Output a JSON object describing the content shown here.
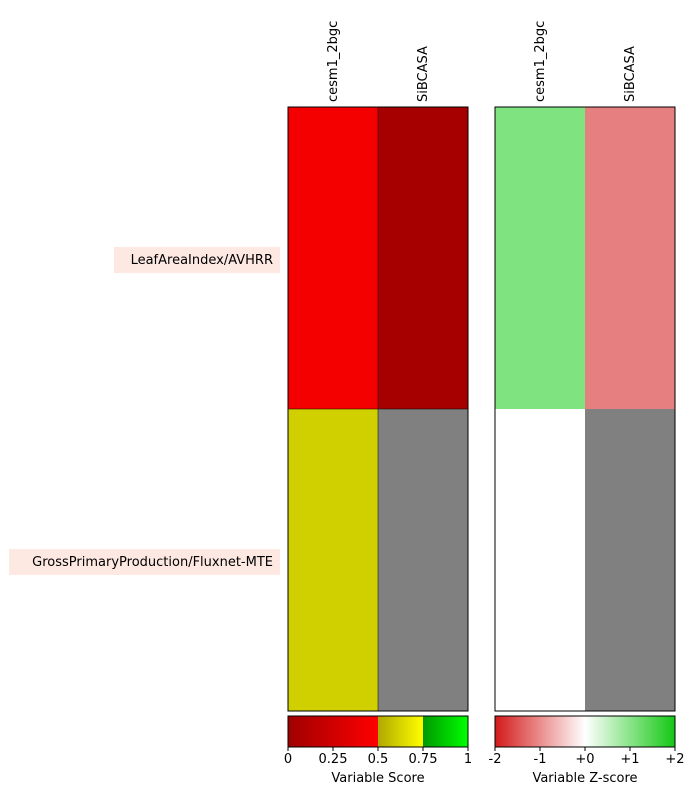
{
  "chart_data": [
    {
      "type": "heatmap",
      "colorbar_label": "Variable Score",
      "columns": [
        "cesm1_2bgc",
        "SiBCASA"
      ],
      "rows": [
        "LeafAreaIndex/AVHRR",
        "GrossPrimaryProduction/Fluxnet-MTE"
      ],
      "cell_colors": [
        [
          "#f50000",
          "#a60000"
        ],
        [
          "#d0d000",
          "#808080"
        ]
      ],
      "colorbar": {
        "range": [
          0,
          1
        ],
        "ticks": [
          "0",
          "0.25",
          "0.5",
          "0.75",
          "1"
        ],
        "segments": [
          {
            "from": 0,
            "to": 0.5,
            "colors": [
              "#a00000",
              "#ff0000"
            ]
          },
          {
            "from": 0.5,
            "to": 0.75,
            "colors": [
              "#b0a800",
              "#ffff00"
            ]
          },
          {
            "from": 0.75,
            "to": 1,
            "colors": [
              "#009900",
              "#00ff00"
            ]
          }
        ]
      }
    },
    {
      "type": "heatmap",
      "colorbar_label": "Variable Z-score",
      "columns": [
        "cesm1_2bgc",
        "SiBCASA"
      ],
      "rows": [
        "LeafAreaIndex/AVHRR",
        "GrossPrimaryProduction/Fluxnet-MTE"
      ],
      "cell_colors": [
        [
          "#7fe47f",
          "#e68080"
        ],
        [
          "#ffffff",
          "#808080"
        ]
      ],
      "colorbar": {
        "range": [
          -2,
          2
        ],
        "ticks": [
          "-2",
          "-1",
          "+0",
          "+1",
          "+2"
        ],
        "gradient": [
          "#d41a1a",
          "#ffffff",
          "#14c814"
        ]
      }
    }
  ]
}
